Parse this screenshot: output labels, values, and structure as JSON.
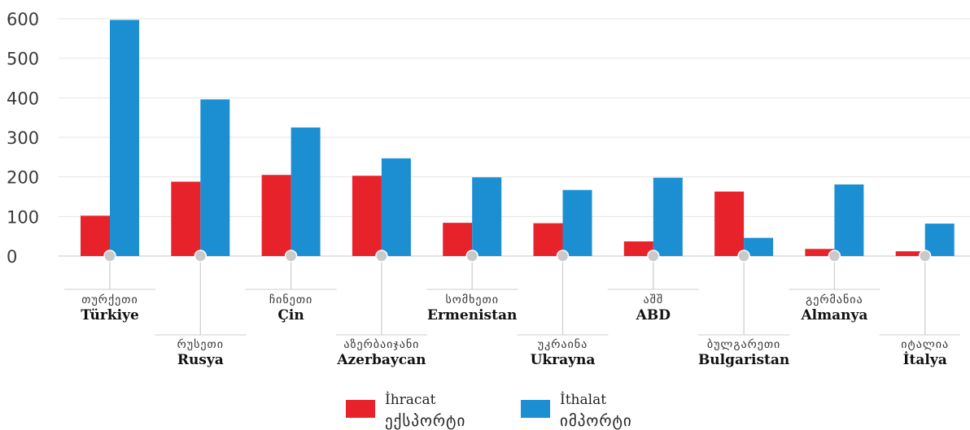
{
  "chart_data": {
    "type": "bar",
    "categories": [
      {
        "ka": "თურქეთი",
        "tr": "Türkiye"
      },
      {
        "ka": "რუსეთი",
        "tr": "Rusya"
      },
      {
        "ka": "ჩინეთი",
        "tr": "Çin"
      },
      {
        "ka": "აზერბაიჯანი",
        "tr": "Azerbaycan"
      },
      {
        "ka": "სომხეთი",
        "tr": "Ermenistan"
      },
      {
        "ka": "უკრაინა",
        "tr": "Ukrayna"
      },
      {
        "ka": "აშშ",
        "tr": "ABD"
      },
      {
        "ka": "ბულგარეთი",
        "tr": "Bulgaristan"
      },
      {
        "ka": "გერმანია",
        "tr": "Almanya"
      },
      {
        "ka": "იტალია",
        "tr": "İtalya"
      }
    ],
    "series": [
      {
        "name": "İhracat",
        "name_ka": "ექსპორტი",
        "color": "#e8222a",
        "values": [
          102,
          188,
          205,
          203,
          84,
          83,
          37,
          163,
          18,
          12
        ]
      },
      {
        "name": "İthalat",
        "name_ka": "იმპორტი",
        "color": "#1b8fd2",
        "values": [
          597,
          396,
          325,
          247,
          199,
          167,
          198,
          46,
          181,
          82
        ]
      }
    ],
    "ylim": [
      0,
      600
    ],
    "yticks": [
      0,
      100,
      200,
      300,
      400,
      500,
      600
    ],
    "grid": true,
    "legend_position": "bottom-center",
    "title": "",
    "xlabel": "",
    "ylabel": ""
  }
}
